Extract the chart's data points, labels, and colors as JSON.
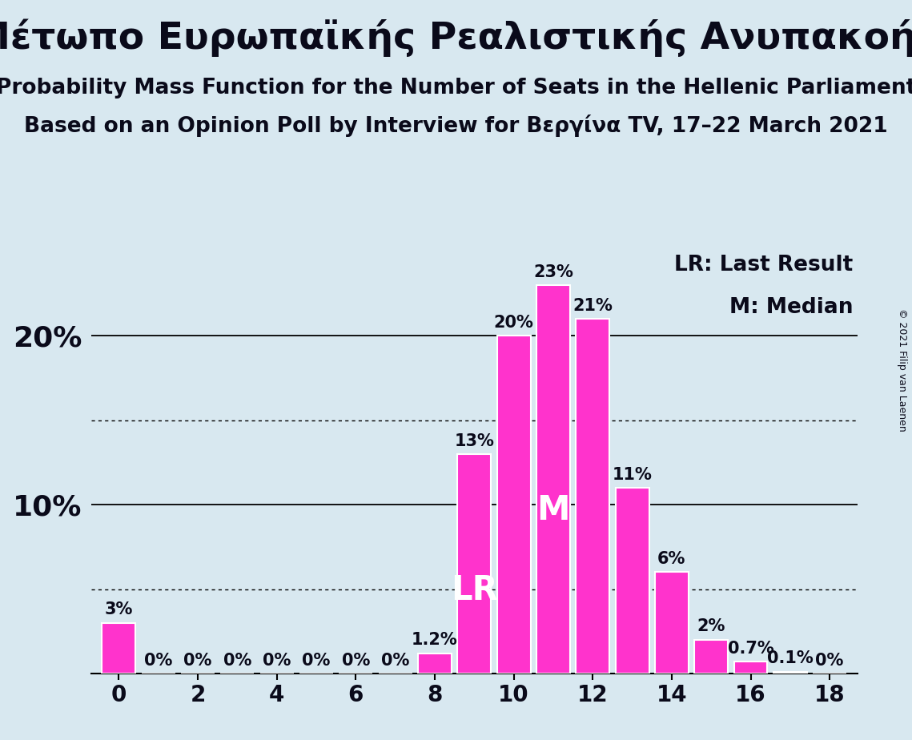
{
  "title_greek": "Μέτωπο Ευρωπαϊκής Ρεαλιστικής Ανυπακοής",
  "subtitle1": "Probability Mass Function for the Number of Seats in the Hellenic Parliament",
  "subtitle2": "Based on an Opinion Poll by Interview for Βεργίνα TV, 17–22 March 2021",
  "copyright": "© 2021 Filip van Laenen",
  "legend_lr": "LR: Last Result",
  "legend_m": "M: Median",
  "seats": [
    0,
    1,
    2,
    3,
    4,
    5,
    6,
    7,
    8,
    9,
    10,
    11,
    12,
    13,
    14,
    15,
    16,
    17,
    18
  ],
  "probabilities": [
    3.0,
    0.0,
    0.0,
    0.0,
    0.0,
    0.0,
    0.0,
    0.0,
    1.2,
    13.0,
    20.0,
    23.0,
    21.0,
    11.0,
    6.0,
    2.0,
    0.7,
    0.1,
    0.0
  ],
  "bar_color": "#FF33CC",
  "bar_edge_color": "white",
  "background_color": "#D8E8F0",
  "text_color": "#0a0a1a",
  "lr_seat": 9,
  "median_seat": 11,
  "ylim": [
    0,
    25
  ],
  "solid_gridlines": [
    10.0,
    20.0
  ],
  "dotted_gridlines": [
    5.0,
    15.0
  ],
  "title_fontsize": 34,
  "subtitle_fontsize": 19,
  "tick_fontsize": 20,
  "annotation_fontsize": 15,
  "legend_fontsize": 19,
  "lr_m_fontsize": 30,
  "ytick_fontsize": 26
}
